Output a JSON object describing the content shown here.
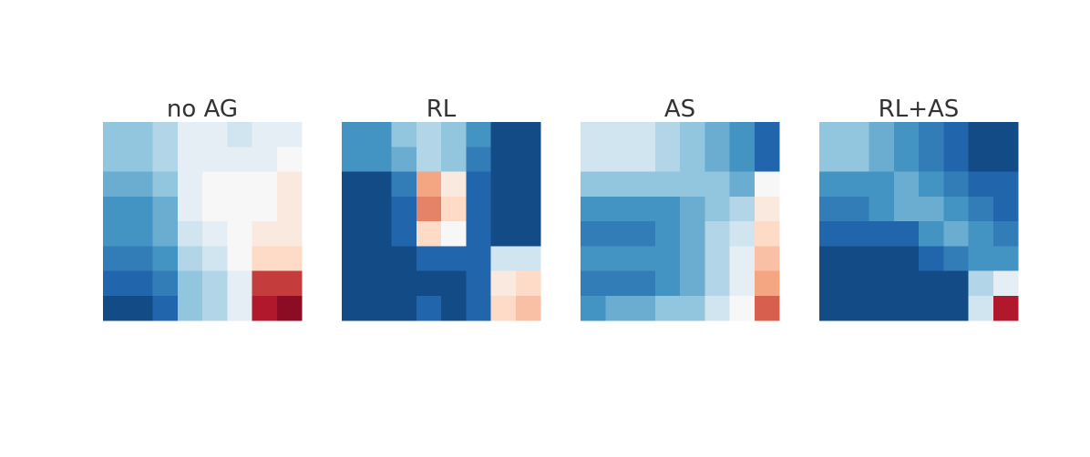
{
  "chart_data": [
    {
      "type": "heatmap",
      "title": "no AG",
      "colormap": "RdBu_r",
      "zlim": [
        0,
        1
      ],
      "values": [
        [
          0.3,
          0.3,
          0.35,
          0.45,
          0.45,
          0.4,
          0.45,
          0.45
        ],
        [
          0.3,
          0.3,
          0.35,
          0.45,
          0.45,
          0.45,
          0.45,
          0.5
        ],
        [
          0.25,
          0.25,
          0.3,
          0.45,
          0.5,
          0.5,
          0.5,
          0.55
        ],
        [
          0.2,
          0.2,
          0.25,
          0.45,
          0.5,
          0.5,
          0.5,
          0.55
        ],
        [
          0.2,
          0.2,
          0.25,
          0.4,
          0.45,
          0.5,
          0.55,
          0.55
        ],
        [
          0.15,
          0.15,
          0.2,
          0.35,
          0.4,
          0.5,
          0.6,
          0.6
        ],
        [
          0.1,
          0.1,
          0.15,
          0.3,
          0.35,
          0.45,
          0.85,
          0.85
        ],
        [
          0.05,
          0.05,
          0.1,
          0.3,
          0.35,
          0.45,
          0.9,
          0.95
        ]
      ]
    },
    {
      "type": "heatmap",
      "title": "RL",
      "colormap": "RdBu_r",
      "zlim": [
        0,
        1
      ],
      "values": [
        [
          0.2,
          0.2,
          0.3,
          0.35,
          0.3,
          0.2,
          0.05,
          0.05
        ],
        [
          0.2,
          0.2,
          0.25,
          0.35,
          0.3,
          0.15,
          0.05,
          0.05
        ],
        [
          0.05,
          0.05,
          0.15,
          0.7,
          0.55,
          0.1,
          0.05,
          0.05
        ],
        [
          0.05,
          0.05,
          0.1,
          0.75,
          0.6,
          0.1,
          0.05,
          0.05
        ],
        [
          0.05,
          0.05,
          0.1,
          0.6,
          0.5,
          0.1,
          0.05,
          0.05
        ],
        [
          0.05,
          0.05,
          0.05,
          0.1,
          0.1,
          0.1,
          0.4,
          0.4
        ],
        [
          0.05,
          0.05,
          0.05,
          0.05,
          0.05,
          0.1,
          0.55,
          0.6
        ],
        [
          0.05,
          0.05,
          0.05,
          0.1,
          0.05,
          0.1,
          0.6,
          0.65
        ]
      ]
    },
    {
      "type": "heatmap",
      "title": "AS",
      "colormap": "RdBu_r",
      "zlim": [
        0,
        1
      ],
      "values": [
        [
          0.4,
          0.4,
          0.4,
          0.35,
          0.3,
          0.25,
          0.2,
          0.1
        ],
        [
          0.4,
          0.4,
          0.4,
          0.35,
          0.3,
          0.25,
          0.2,
          0.1
        ],
        [
          0.3,
          0.3,
          0.3,
          0.3,
          0.3,
          0.3,
          0.25,
          0.5
        ],
        [
          0.2,
          0.2,
          0.2,
          0.2,
          0.25,
          0.3,
          0.35,
          0.55
        ],
        [
          0.15,
          0.15,
          0.15,
          0.2,
          0.25,
          0.35,
          0.4,
          0.6
        ],
        [
          0.2,
          0.2,
          0.2,
          0.2,
          0.25,
          0.35,
          0.45,
          0.65
        ],
        [
          0.15,
          0.15,
          0.15,
          0.2,
          0.25,
          0.35,
          0.45,
          0.7
        ],
        [
          0.2,
          0.25,
          0.25,
          0.3,
          0.3,
          0.4,
          0.5,
          0.8
        ]
      ]
    },
    {
      "type": "heatmap",
      "title": "RL+AS",
      "colormap": "RdBu_r",
      "zlim": [
        0,
        1
      ],
      "values": [
        [
          0.3,
          0.3,
          0.25,
          0.2,
          0.15,
          0.1,
          0.05,
          0.05
        ],
        [
          0.3,
          0.3,
          0.25,
          0.2,
          0.15,
          0.1,
          0.05,
          0.05
        ],
        [
          0.2,
          0.2,
          0.2,
          0.25,
          0.2,
          0.15,
          0.1,
          0.1
        ],
        [
          0.15,
          0.15,
          0.2,
          0.25,
          0.25,
          0.2,
          0.15,
          0.1
        ],
        [
          0.1,
          0.1,
          0.1,
          0.1,
          0.2,
          0.25,
          0.2,
          0.15
        ],
        [
          0.05,
          0.05,
          0.05,
          0.05,
          0.1,
          0.15,
          0.2,
          0.2
        ],
        [
          0.05,
          0.05,
          0.05,
          0.05,
          0.05,
          0.05,
          0.35,
          0.45
        ],
        [
          0.05,
          0.05,
          0.05,
          0.05,
          0.05,
          0.05,
          0.4,
          0.9
        ]
      ]
    }
  ]
}
